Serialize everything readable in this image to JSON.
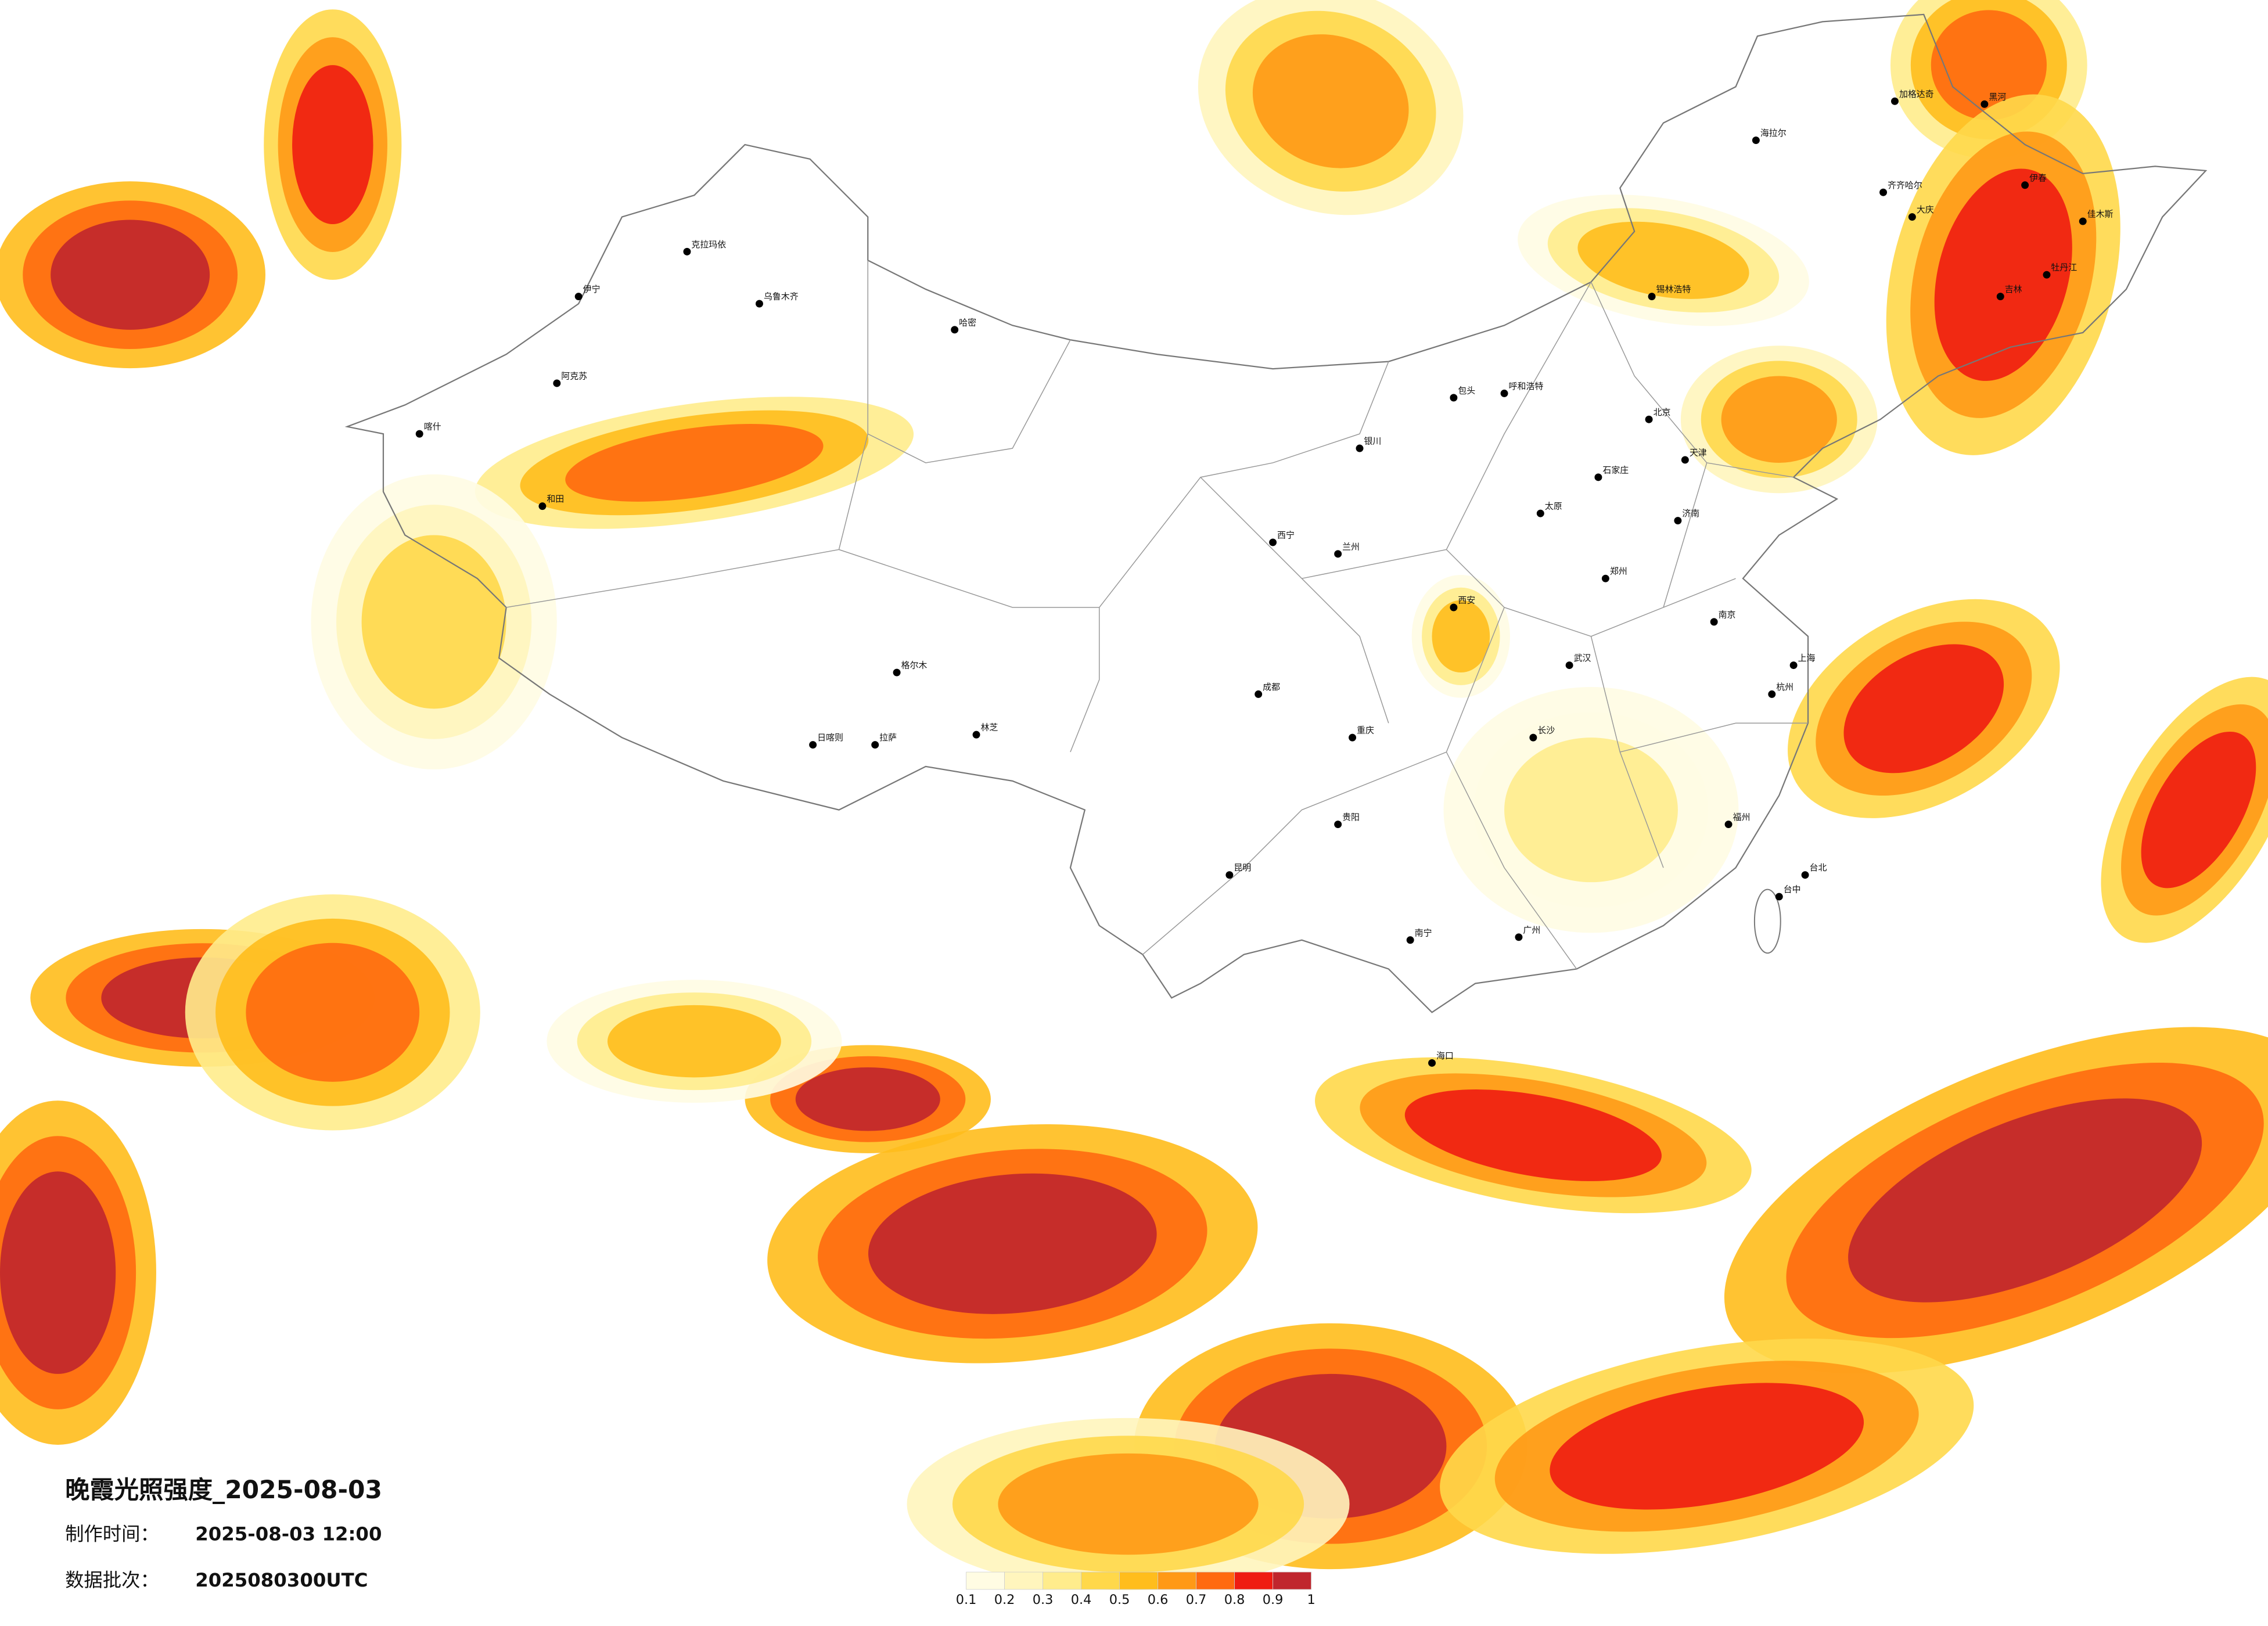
{
  "header": {
    "title": "晚霞光照强度_2025-08-03",
    "made_label": "制作时间：",
    "made_time": "2025-08-03 12:00",
    "batch_label": "数据批次：",
    "batch": "2025080300UTC"
  },
  "legend": {
    "ticks": [
      0.1,
      0.2,
      0.3,
      0.4,
      0.5,
      0.6,
      0.7,
      0.8,
      0.9,
      1
    ],
    "colors": [
      "#fffce3",
      "#fff5bd",
      "#ffec8c",
      "#ffd84a",
      "#ffbd1c",
      "#ff9916",
      "#ff6a10",
      "#ef1c12",
      "#c0262e"
    ]
  },
  "cities": [
    "海拉尔",
    "加格达奇",
    "黑河",
    "齐齐哈尔",
    "大庆",
    "伊春",
    "佳木斯",
    "牡丹江",
    "吉林",
    "锡林浩特",
    "呼和浩特",
    "包头",
    "北京",
    "天津",
    "石家庄",
    "太原",
    "济南",
    "郑州",
    "西安",
    "兰州",
    "西宁",
    "银川",
    "乌鲁木齐",
    "哈密",
    "阿克苏",
    "和田",
    "喀什",
    "伊宁",
    "克拉玛依",
    "拉萨",
    "日喀则",
    "林芝",
    "成都",
    "重庆",
    "昆明",
    "贵阳",
    "南宁",
    "广州",
    "福州",
    "杭州",
    "上海",
    "南京",
    "武汉",
    "长沙",
    "台北",
    "台中",
    "海口",
    "格尔木"
  ]
}
